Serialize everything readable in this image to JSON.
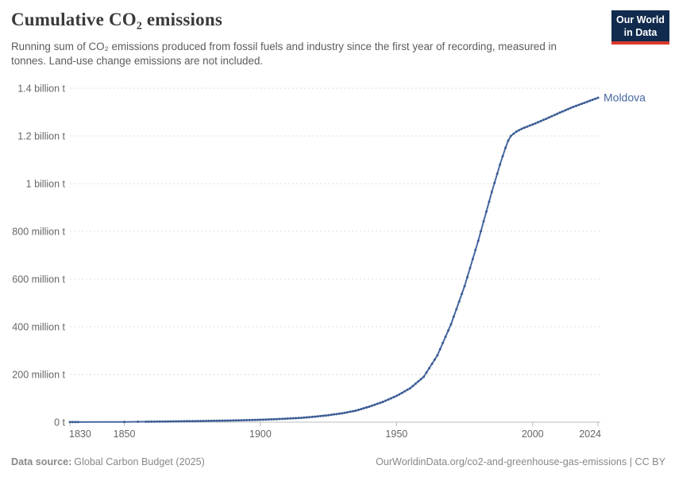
{
  "header": {
    "title": "Cumulative CO₂ emissions",
    "subtitle": "Running sum of CO₂ emissions produced from fossil fuels and industry since the first year of recording, measured in tonnes. Land-use change emissions are not included.",
    "logo": {
      "line1": "Our World",
      "line2": "in Data"
    }
  },
  "footer": {
    "source_label": "Data source:",
    "source_value": "Global Carbon Budget (2025)",
    "credit": "OurWorldinData.org/co2-and-greenhouse-gas-emissions | CC BY"
  },
  "colors": {
    "line": "#4768a0",
    "marker": "#3b5c94",
    "entity_label": "#4768a0",
    "grid": "#dddddd",
    "axis": "#bcbcbc",
    "tick_text": "#666666",
    "title": "#3a3a3a",
    "subtitle": "#5c5c5c",
    "footer": "#888888",
    "logo_bg": "#112b4e",
    "logo_red": "#d93a2b"
  },
  "chart_data": {
    "type": "line",
    "title": "Cumulative CO₂ emissions",
    "unit": "tonnes",
    "xlim": [
      1830,
      2024
    ],
    "ylim": [
      0,
      1400
    ],
    "ylim_unit": "million tonnes",
    "grid": "horizontal-dashed",
    "legend_position": "right-of-line-end",
    "x_ticks": [
      1830,
      1850,
      1900,
      1950,
      2000,
      2024
    ],
    "y_ticks": [
      {
        "value": 1400,
        "label": "1.4 billion t"
      },
      {
        "value": 1200,
        "label": "1.2 billion t"
      },
      {
        "value": 1000,
        "label": "1 billion t"
      },
      {
        "value": 800,
        "label": "800 million t"
      },
      {
        "value": 600,
        "label": "600 million t"
      },
      {
        "value": 400,
        "label": "400 million t"
      },
      {
        "value": 200,
        "label": "200 million t"
      },
      {
        "value": 0,
        "label": "0 t"
      }
    ],
    "series": [
      {
        "name": "Moldova",
        "color": "#4768a0",
        "marker_color": "#3b5c94",
        "label_color": "#4768a0",
        "values_unit": "million tonnes",
        "points": [
          [
            1830,
            0.3
          ],
          [
            1850,
            1
          ],
          [
            1855,
            1.5
          ],
          [
            1860,
            2
          ],
          [
            1870,
            3.5
          ],
          [
            1880,
            5
          ],
          [
            1890,
            7
          ],
          [
            1900,
            10
          ],
          [
            1905,
            12
          ],
          [
            1910,
            15
          ],
          [
            1915,
            18
          ],
          [
            1920,
            23
          ],
          [
            1925,
            29
          ],
          [
            1930,
            37
          ],
          [
            1935,
            48
          ],
          [
            1940,
            65
          ],
          [
            1945,
            85
          ],
          [
            1950,
            110
          ],
          [
            1955,
            142
          ],
          [
            1960,
            190
          ],
          [
            1965,
            280
          ],
          [
            1970,
            410
          ],
          [
            1975,
            570
          ],
          [
            1980,
            760
          ],
          [
            1985,
            965
          ],
          [
            1988,
            1080
          ],
          [
            1990,
            1150
          ],
          [
            1991,
            1180
          ],
          [
            1992,
            1200
          ],
          [
            1994,
            1218
          ],
          [
            1996,
            1230
          ],
          [
            2000,
            1248
          ],
          [
            2005,
            1272
          ],
          [
            2010,
            1298
          ],
          [
            2015,
            1322
          ],
          [
            2020,
            1343
          ],
          [
            2024,
            1360
          ]
        ],
        "marker_years_sparse": [
          1830,
          1831,
          1832,
          1833,
          1850,
          1855
        ],
        "marker_dense_from": 1858
      }
    ]
  }
}
